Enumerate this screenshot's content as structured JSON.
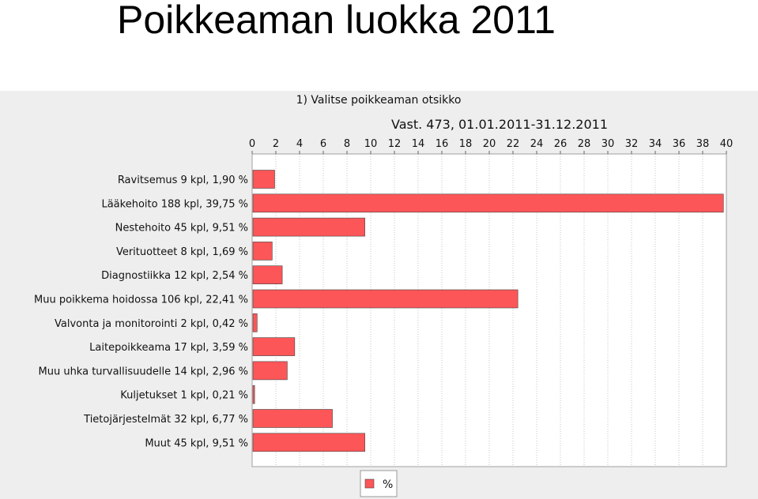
{
  "slide": {
    "title": "Poikkeaman luokka 2011"
  },
  "chart_header": {
    "heading": "1) Valitse poikkeaman otsikko",
    "subtitle": "Vast. 473, 01.01.2011-31.12.2011"
  },
  "chart_data": {
    "type": "bar",
    "orientation": "horizontal",
    "title": "",
    "xlabel": "",
    "ylabel": "",
    "xlim": [
      0,
      40
    ],
    "x_ticks": [
      0,
      2,
      4,
      6,
      8,
      10,
      12,
      14,
      16,
      18,
      20,
      22,
      24,
      26,
      28,
      30,
      32,
      34,
      36,
      38,
      40
    ],
    "x_axis_position": "top",
    "grid": {
      "vertical": true,
      "horizontal": false
    },
    "legend": {
      "position": "bottom-center",
      "entries": [
        "%"
      ]
    },
    "categories": [
      "Ravitsemus 9 kpl, 1,90 %",
      "Lääkehoito 188 kpl, 39,75 %",
      "Nestehoito 45 kpl, 9,51 %",
      "Verituotteet 8 kpl, 1,69 %",
      "Diagnostiikka 12 kpl, 2,54 %",
      "Muu poikkema hoidossa 106 kpl, 22,41 %",
      "Valvonta ja monitorointi 2 kpl, 0,42 %",
      "Laitepoikkeama 17 kpl, 3,59 %",
      "Muu uhka turvallisuudelle 14 kpl, 2,96 %",
      "Kuljetukset 1 kpl, 0,21 %",
      "Tietojärjestelmät 32 kpl, 6,77 %",
      "Muut 45 kpl, 9,51 %"
    ],
    "series": [
      {
        "name": "%",
        "color": "#fc5658",
        "values": [
          1.9,
          39.75,
          9.51,
          1.69,
          2.54,
          22.41,
          0.42,
          3.59,
          2.96,
          0.21,
          6.77,
          9.51
        ]
      }
    ]
  }
}
